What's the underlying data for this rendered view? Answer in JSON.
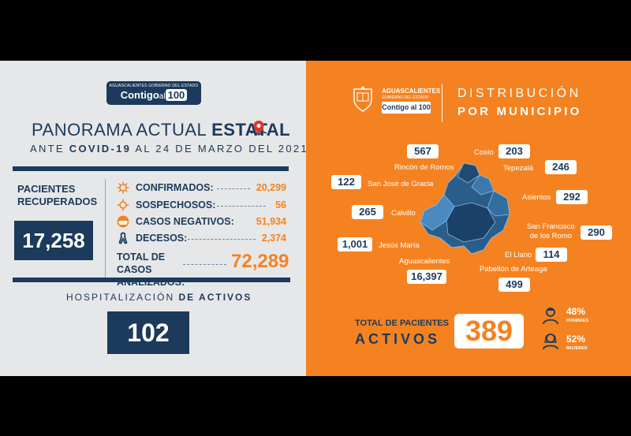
{
  "left": {
    "logo_top": "AGUASCALIENTES GOBIERNO DEL ESTADO",
    "logo_main_a": "Contigo",
    "logo_main_b": "al",
    "logo_main_c": "100",
    "title_a": "PANORAMA ACTUAL ",
    "title_b": "ESTATAL",
    "subtitle_a": "ANTE ",
    "subtitle_b": "COVID-19",
    "subtitle_c": " AL 24 DE MARZO DEL 2021",
    "recovered_label": "PACIENTES RECUPERADOS",
    "recovered_value": "17,258",
    "stats": [
      {
        "label": "CONFIRMADOS:",
        "value": "20,299",
        "icon": "virus-icon"
      },
      {
        "label": "SOSPECHOSOS:",
        "value": "56",
        "icon": "virus-icon"
      },
      {
        "label": "CASOS NEGATIVOS:",
        "value": "51,934",
        "icon": "mask-icon"
      },
      {
        "label": "DECESOS:",
        "value": "2,374",
        "icon": "ribbon-icon"
      }
    ],
    "total_label": "TOTAL DE CASOS ANALIZADOS:",
    "total_value": "72,289",
    "hosp_a": "HOSPITALIZACIÓN ",
    "hosp_b": "DE ACTIVOS",
    "hosp_value": "102"
  },
  "right": {
    "logo_top": "AGUASCALIENTES",
    "logo_sub": "GOBIERNO DEL ESTADO",
    "logo_badge": "Contigo al 100",
    "heading_1": "DISTRIBUCIÓN",
    "heading_2": "POR MUNICIPIO",
    "municipalities": [
      {
        "name": "Cosío",
        "value": "203"
      },
      {
        "name": "Rincón de Romos",
        "value": "567"
      },
      {
        "name": "Tepezalá",
        "value": "246"
      },
      {
        "name": "San José de Gracia",
        "value": "122"
      },
      {
        "name": "Asientos",
        "value": "292"
      },
      {
        "name": "Calvillo",
        "value": "265"
      },
      {
        "name": "San Francisco de los Romo",
        "value": "290"
      },
      {
        "name": "Jesús María",
        "value": "1,001"
      },
      {
        "name": "El Llano",
        "value": "114"
      },
      {
        "name": "Aguascalientes",
        "value": "16,397"
      },
      {
        "name": "Pabellón de Arteaga",
        "value": "499"
      }
    ],
    "sf_line1": "San Francisco",
    "sf_line2": "de los Romo",
    "total_label": "TOTAL DE PACIENTES",
    "total_active": "ACTIVOS",
    "total_value": "389",
    "men_pct": "48%",
    "men_label": "HOMBRES",
    "women_pct": "52%",
    "women_label": "MUJERES"
  },
  "colors": {
    "navy": "#1b3a5c",
    "orange": "#f58220",
    "light_gray": "#e6e7e8"
  }
}
